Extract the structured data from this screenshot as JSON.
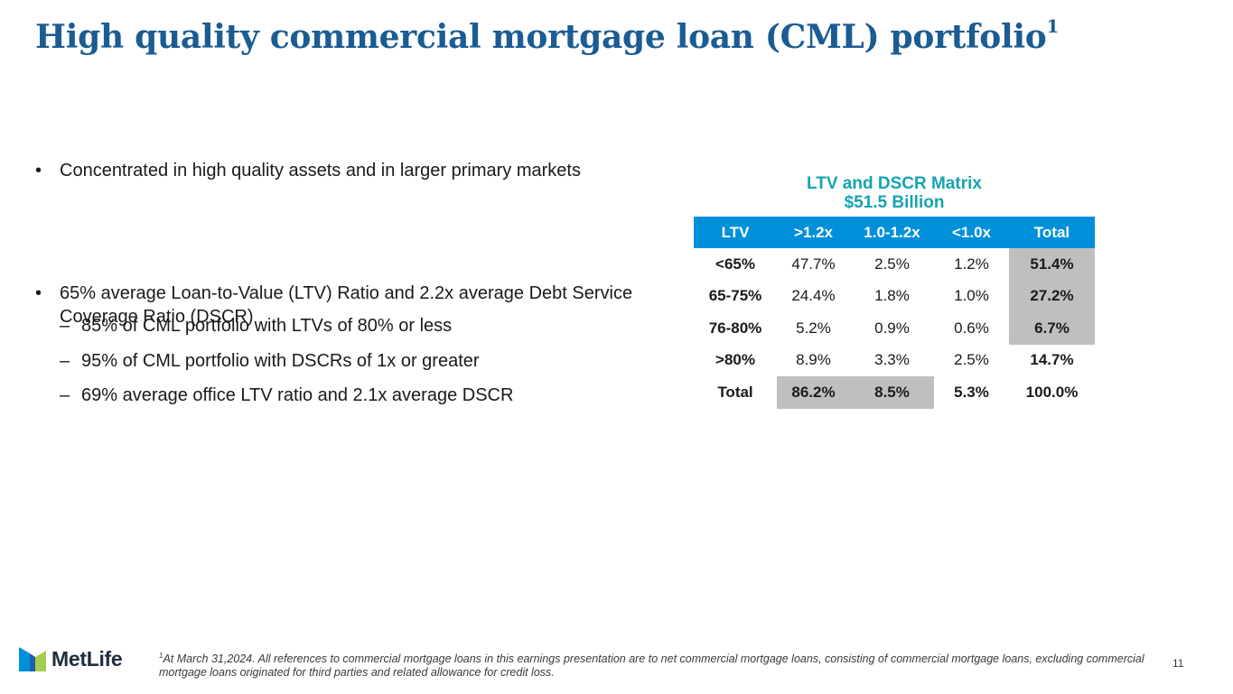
{
  "title": {
    "text": "High quality commercial mortgage loan (CML) portfolio",
    "superscript": "1"
  },
  "bullets": [
    {
      "text": "Concentrated in high quality assets and in larger primary markets"
    },
    {
      "text": "65% average Loan-to-Value (LTV) Ratio and 2.2x average Debt Service Coverage Ratio (DSCR)"
    }
  ],
  "sub_bullets": [
    "85% of CML portfolio with LTVs of 80% or less",
    "95% of CML portfolio with DSCRs of 1x or greater",
    "69% average office LTV ratio and 2.1x average DSCR"
  ],
  "matrix": {
    "title": "LTV and DSCR Matrix",
    "subtitle": "$51.5 Billion",
    "headers": [
      "LTV",
      ">1.2x",
      "1.0-1.2x",
      "<1.0x",
      "Total"
    ],
    "rows": [
      {
        "label": "<65%",
        "cells": [
          "47.7%",
          "2.5%",
          "1.2%",
          "51.4%"
        ]
      },
      {
        "label": "65-75%",
        "cells": [
          "24.4%",
          "1.8%",
          "1.0%",
          "27.2%"
        ]
      },
      {
        "label": "76-80%",
        "cells": [
          "5.2%",
          "0.9%",
          "0.6%",
          "6.7%"
        ]
      },
      {
        "label": ">80%",
        "cells": [
          "8.9%",
          "3.3%",
          "2.5%",
          "14.7%"
        ]
      },
      {
        "label": "Total",
        "cells": [
          "86.2%",
          "8.5%",
          "5.3%",
          "100.0%"
        ]
      }
    ],
    "colors": {
      "header_bg": "#0090da",
      "title": "#16a3b1",
      "shade": "#bfbfbf"
    }
  },
  "logo": {
    "text": "MetLife",
    "icon": "metlife-logo-icon"
  },
  "footnote": {
    "marker": "1",
    "text": "At March 31,2024. All references to commercial mortgage loans in this earnings presentation are to net commercial mortgage loans, consisting of commercial mortgage loans, excluding commercial mortgage loans originated for third parties and related allowance for credit loss."
  },
  "page_number": "11"
}
